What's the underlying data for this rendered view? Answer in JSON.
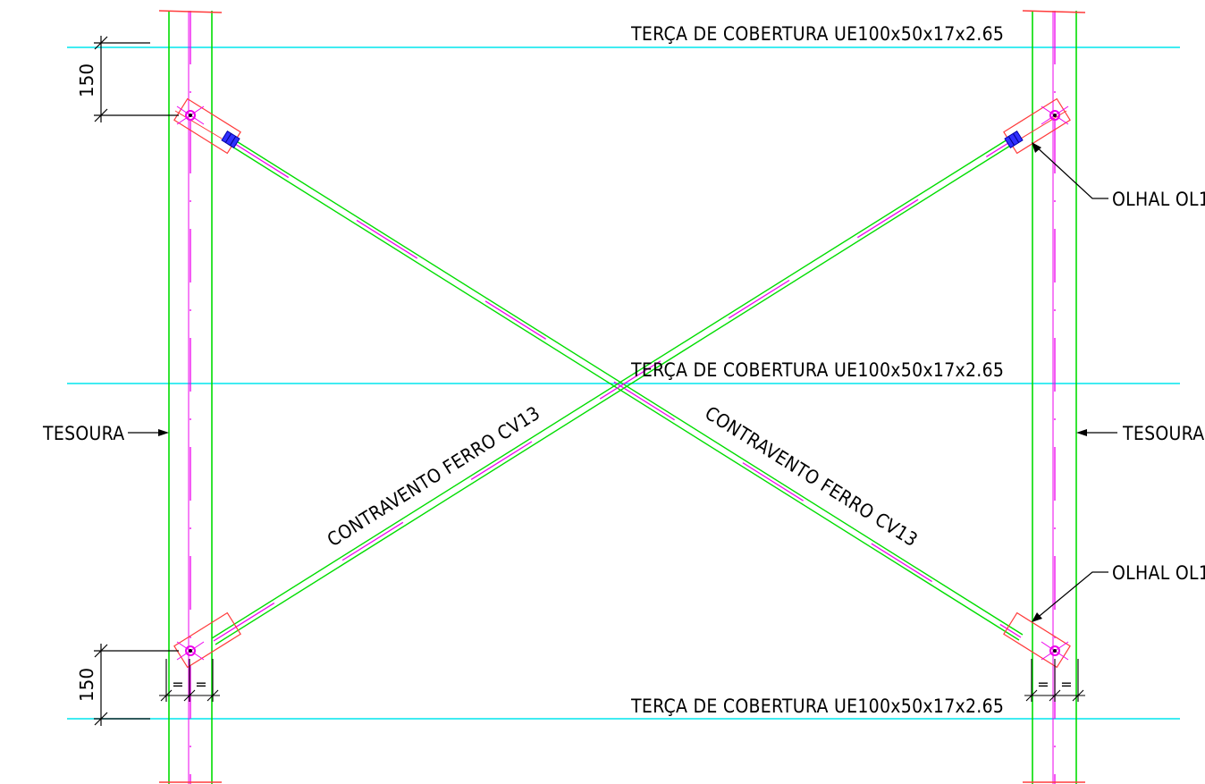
{
  "labels": {
    "purlin_top": "TERÇA DE COBERTURA UE100x50x17x2.65",
    "purlin_mid": "TERÇA DE COBERTURA UE100x50x17x2.65",
    "purlin_bottom": "TERÇA DE COBERTURA UE100x50x17x2.65",
    "truss_left": "TESOURA",
    "truss_right": "TESOURA",
    "eyelet_top": "OLHAL OL1",
    "eyelet_bottom": "OLHAL OL1",
    "brace_rising": "CONTRAVENTO FERRO CV13",
    "brace_falling": "CONTRAVENTO FERRO CV13",
    "dim_top": "150",
    "dim_bottom": "150",
    "eq_symbol": "="
  },
  "colors": {
    "purlin": "#00e5ee",
    "truss": "#00dd00",
    "axis": "#ee00ee",
    "plate": "#ff3b3b",
    "bolt": "#0000ff",
    "text": "#000000"
  }
}
